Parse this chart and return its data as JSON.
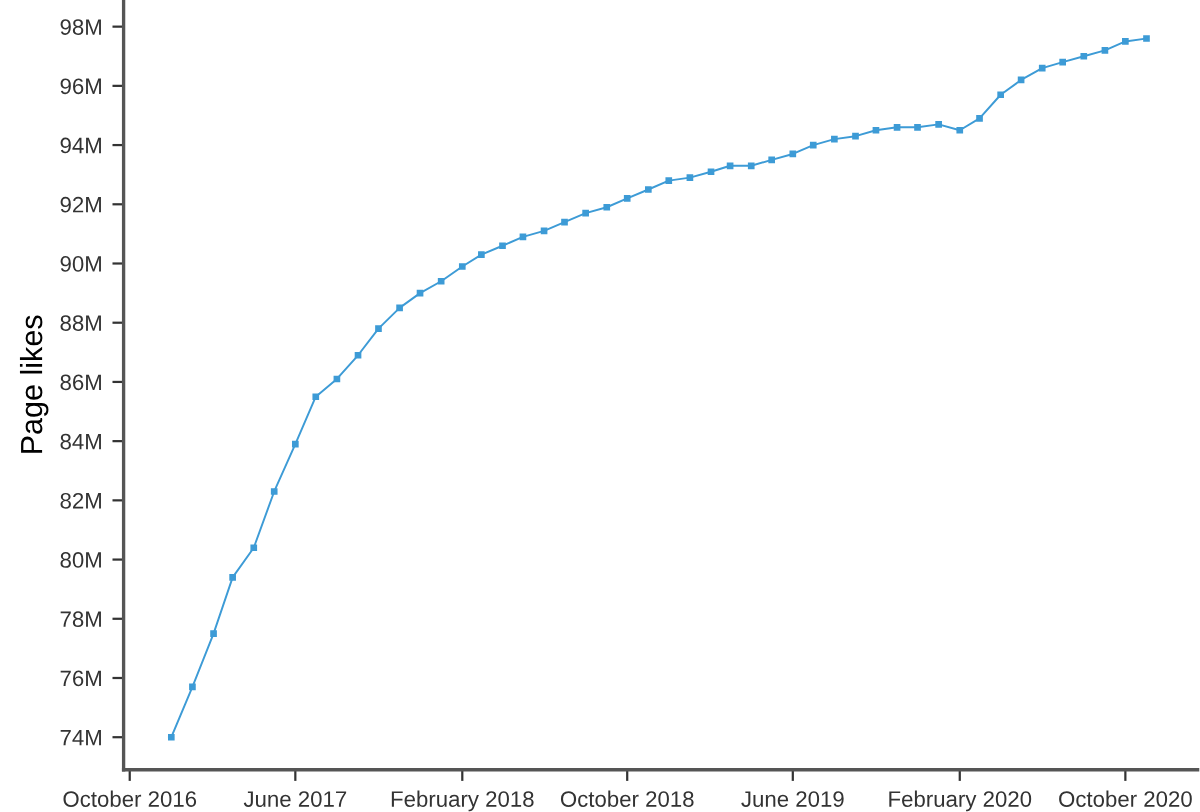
{
  "chart_data": {
    "type": "line",
    "ylabel": "Page likes",
    "x": [
      "2016-12",
      "2017-01",
      "2017-02",
      "2017-03",
      "2017-04",
      "2017-05",
      "2017-06",
      "2017-07",
      "2017-08",
      "2017-09",
      "2017-10",
      "2017-11",
      "2017-12",
      "2018-01",
      "2018-02",
      "2018-03",
      "2018-04",
      "2018-05",
      "2018-06",
      "2018-07",
      "2018-08",
      "2018-09",
      "2018-10",
      "2018-11",
      "2018-12",
      "2019-01",
      "2019-02",
      "2019-03",
      "2019-04",
      "2019-05",
      "2019-06",
      "2019-07",
      "2019-08",
      "2019-09",
      "2019-10",
      "2019-11",
      "2019-12",
      "2020-01",
      "2020-02",
      "2020-03",
      "2020-04",
      "2020-05",
      "2020-06",
      "2020-07",
      "2020-08",
      "2020-09",
      "2020-10",
      "2020-11"
    ],
    "series": [
      {
        "color": "#3d9bd6",
        "values": [
          74.0,
          75.7,
          77.5,
          79.4,
          80.4,
          82.3,
          83.9,
          85.5,
          86.1,
          86.9,
          87.8,
          88.5,
          89.0,
          89.4,
          89.9,
          90.3,
          90.6,
          90.9,
          91.1,
          91.4,
          91.7,
          91.9,
          92.2,
          92.5,
          92.8,
          92.9,
          93.1,
          93.3,
          93.3,
          93.5,
          93.7,
          94.0,
          94.2,
          94.3,
          94.5,
          94.6,
          94.6,
          94.7,
          94.5,
          94.9,
          95.7,
          96.2,
          96.6,
          96.8,
          97.0,
          97.2,
          97.5,
          97.6
        ]
      }
    ],
    "xlim": [
      "2016-09-22",
      "2021-01-15"
    ],
    "xticks": [
      {
        "value": "2016-10",
        "label": "October 2016"
      },
      {
        "value": "2017-06",
        "label": "June 2017"
      },
      {
        "value": "2018-02",
        "label": "February 2018"
      },
      {
        "value": "2018-10",
        "label": "October 2018"
      },
      {
        "value": "2019-06",
        "label": "June 2019"
      },
      {
        "value": "2020-02",
        "label": "February 2020"
      },
      {
        "value": "2020-10",
        "label": "October 2020"
      }
    ],
    "ylim": [
      72.9,
      98.9
    ],
    "yticks": [
      {
        "value": 74,
        "label": "74M"
      },
      {
        "value": 76,
        "label": "76M"
      },
      {
        "value": 78,
        "label": "78M"
      },
      {
        "value": 80,
        "label": "80M"
      },
      {
        "value": 82,
        "label": "82M"
      },
      {
        "value": 84,
        "label": "84M"
      },
      {
        "value": 86,
        "label": "86M"
      },
      {
        "value": 88,
        "label": "88M"
      },
      {
        "value": 90,
        "label": "90M"
      },
      {
        "value": 92,
        "label": "92M"
      },
      {
        "value": 94,
        "label": "94M"
      },
      {
        "value": 96,
        "label": "96M"
      },
      {
        "value": 98,
        "label": "98M"
      }
    ],
    "grid": false,
    "marker": "square",
    "line_style": "solid"
  }
}
